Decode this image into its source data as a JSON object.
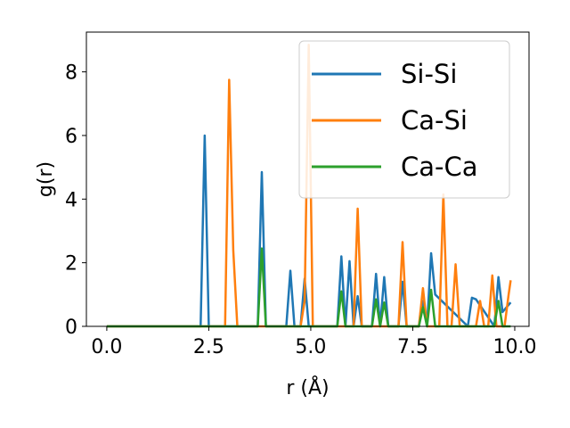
{
  "chart_data": {
    "type": "line",
    "xlabel": "r (Å)",
    "ylabel": "g(r)",
    "xlim": [
      -0.5,
      10.35
    ],
    "ylim": [
      0,
      9.25
    ],
    "x_ticks": [
      0.0,
      2.5,
      5.0,
      7.5,
      10.0
    ],
    "x_tick_labels": [
      "0.0",
      "2.5",
      "5.0",
      "7.5",
      "10.0"
    ],
    "y_ticks": [
      0,
      2,
      4,
      6,
      8
    ],
    "y_tick_labels": [
      "0",
      "2",
      "4",
      "6",
      "8"
    ],
    "grid": false,
    "legend_position": "upper-right",
    "series": [
      {
        "name": "Si-Si",
        "color": "#1f77b4",
        "x": [
          0.0,
          2.3,
          2.4,
          2.5,
          3.7,
          3.8,
          3.9,
          4.4,
          4.5,
          4.6,
          4.75,
          4.85,
          4.95,
          5.65,
          5.75,
          5.85,
          5.95,
          6.05,
          6.15,
          6.25,
          6.5,
          6.6,
          6.7,
          6.8,
          6.9,
          7.15,
          7.25,
          7.35,
          7.65,
          7.75,
          7.85,
          7.95,
          8.05,
          8.85,
          8.95,
          9.05,
          9.5,
          9.6,
          9.7,
          9.9
        ],
        "y": [
          0.0,
          0.0,
          6.0,
          0.0,
          0.0,
          4.85,
          0.0,
          0.0,
          1.75,
          0.0,
          0.0,
          1.5,
          0.0,
          0.0,
          2.2,
          0.0,
          2.05,
          0.0,
          0.95,
          0.0,
          0.0,
          1.65,
          0.0,
          1.55,
          0.0,
          0.0,
          1.4,
          0.0,
          0.0,
          0.8,
          0.0,
          2.3,
          1.0,
          0.0,
          0.9,
          0.85,
          0.0,
          1.55,
          0.45,
          0.75
        ]
      },
      {
        "name": "Ca-Si",
        "color": "#ff7f0e",
        "x": [
          0.0,
          2.9,
          3.0,
          3.1,
          3.2,
          4.75,
          4.85,
          4.95,
          5.05,
          6.05,
          6.15,
          6.25,
          7.15,
          7.25,
          7.35,
          7.65,
          7.75,
          7.85,
          8.15,
          8.25,
          8.35,
          8.45,
          8.55,
          8.65,
          9.05,
          9.15,
          9.25,
          9.35,
          9.45,
          9.55,
          9.65,
          9.75,
          9.85,
          9.9
        ],
        "y": [
          0.0,
          0.0,
          7.75,
          2.4,
          0.0,
          0.0,
          0.8,
          8.85,
          0.0,
          0.0,
          3.7,
          0.0,
          0.0,
          2.65,
          0.0,
          0.0,
          1.2,
          0.0,
          0.0,
          4.15,
          0.0,
          0.0,
          1.95,
          0.0,
          0.0,
          0.8,
          0.0,
          0.0,
          1.6,
          0.0,
          0.0,
          0.0,
          1.0,
          1.45
        ]
      },
      {
        "name": "Ca-Ca",
        "color": "#2ca02c",
        "x": [
          0.0,
          3.7,
          3.8,
          3.9,
          5.65,
          5.75,
          5.85,
          6.5,
          6.6,
          6.7,
          6.8,
          6.9,
          7.65,
          7.75,
          7.85,
          7.95,
          8.05,
          9.5,
          9.6,
          9.7,
          9.9
        ],
        "y": [
          0.0,
          0.0,
          2.45,
          0.0,
          0.0,
          1.1,
          0.0,
          0.0,
          0.85,
          0.0,
          0.75,
          0.0,
          0.0,
          0.6,
          0.0,
          1.15,
          0.0,
          0.0,
          0.8,
          0.0,
          0.0
        ]
      }
    ]
  }
}
